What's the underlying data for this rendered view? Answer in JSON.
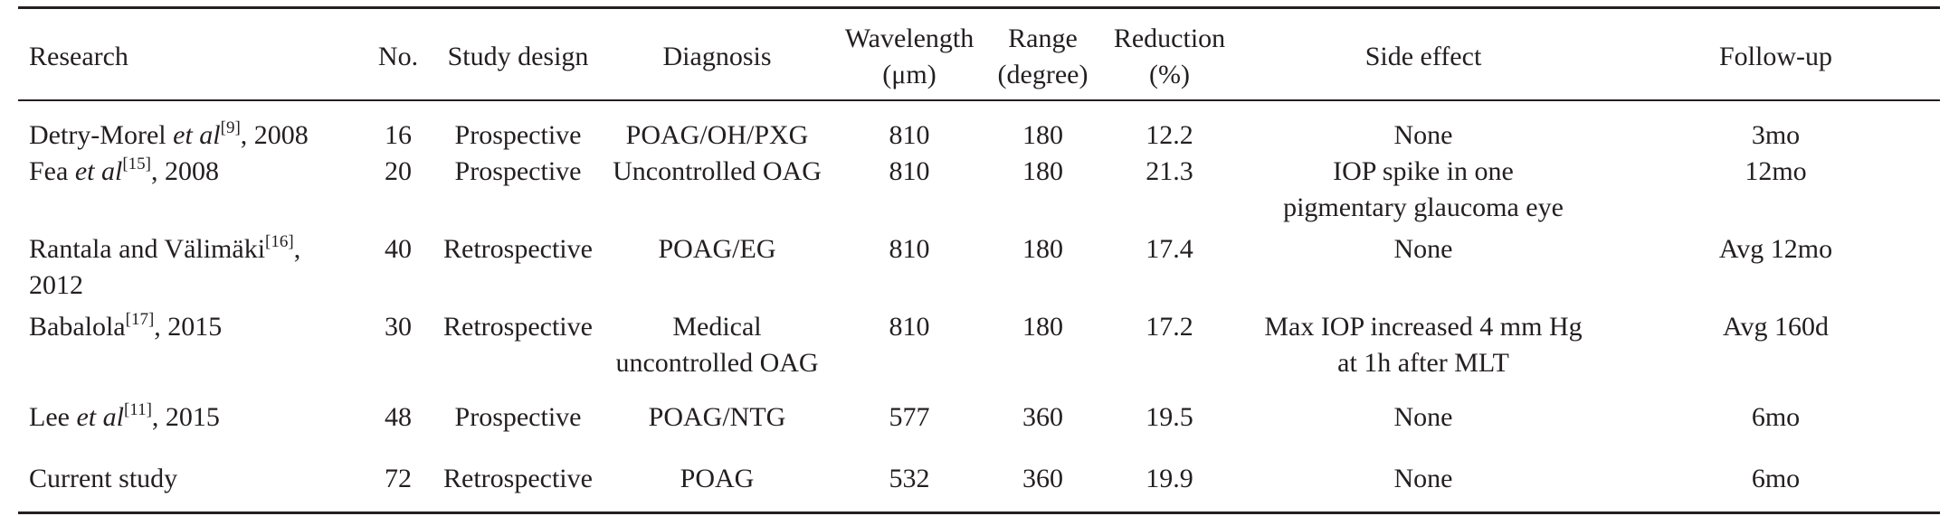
{
  "table": {
    "headers": {
      "research": "Research",
      "no": "No.",
      "study_design": "Study design",
      "diagnosis": "Diagnosis",
      "wavelength": "Wavelength",
      "wavelength_unit": "(μm)",
      "range": "Range",
      "range_unit": "(degree)",
      "reduction": "Reduction",
      "reduction_unit": "(%)",
      "side_effect": "Side effect",
      "follow_up": "Follow-up"
    },
    "rows": [
      {
        "author": "Detry-Morel ",
        "etal": "et al",
        "ref": "[9]",
        "year": ", 2008",
        "no": "16",
        "design": "Prospective",
        "diagnosis": "POAG/OH/PXG",
        "wavelength": "810",
        "range": "180",
        "reduction": "12.2",
        "side_effect": "None",
        "follow_up": "3mo"
      },
      {
        "author": "Fea ",
        "etal": "et al",
        "ref": "[15]",
        "year": ", 2008",
        "no": "20",
        "design": "Prospective",
        "diagnosis": "Uncontrolled OAG",
        "wavelength": "810",
        "range": "180",
        "reduction": "21.3",
        "side_effect_line1": "IOP spike in one",
        "side_effect_line2": "pigmentary glaucoma eye",
        "follow_up": "12mo"
      },
      {
        "author": "Rantala and Välimäki",
        "ref": "[16]",
        "year_tail": ",",
        "year": "2012",
        "no": "40",
        "design": "Retrospective",
        "diagnosis": "POAG/EG",
        "wavelength": "810",
        "range": "180",
        "reduction": "17.4",
        "side_effect": "None",
        "follow_up": "Avg 12mo"
      },
      {
        "author": "Babalola",
        "ref": "[17]",
        "year": ", 2015",
        "no": "30",
        "design": "Retrospective",
        "diagnosis_line1": "Medical",
        "diagnosis_line2": "uncontrolled OAG",
        "wavelength": "810",
        "range": "180",
        "reduction": "17.2",
        "side_effect_line1": "Max IOP increased 4 mm Hg",
        "side_effect_line2": "at 1h after MLT",
        "follow_up": "Avg 160d"
      },
      {
        "author": "Lee ",
        "etal": "et al",
        "ref": "[11]",
        "year": ", 2015",
        "no": "48",
        "design": "Prospective",
        "diagnosis": "POAG/NTG",
        "wavelength": "577",
        "range": "360",
        "reduction": "19.5",
        "side_effect": "None",
        "follow_up": "6mo"
      },
      {
        "author": "Current study",
        "no": "72",
        "design": "Retrospective",
        "diagnosis": "POAG",
        "wavelength": "532",
        "range": "360",
        "reduction": "19.9",
        "side_effect": "None",
        "follow_up": "6mo"
      }
    ]
  }
}
